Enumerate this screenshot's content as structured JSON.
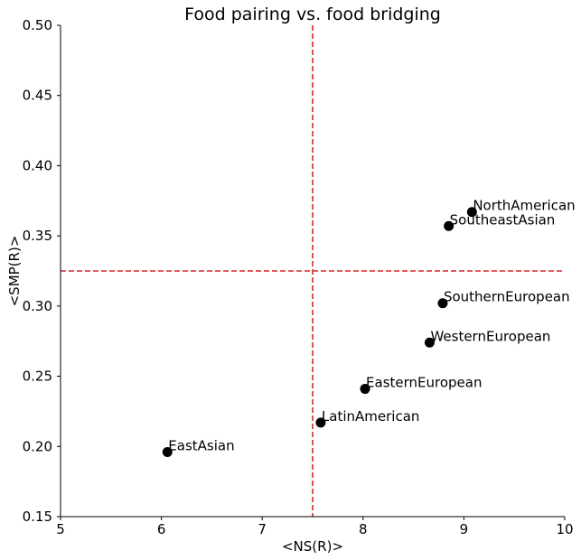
{
  "chart_data": {
    "type": "scatter",
    "title": "Food pairing vs. food bridging",
    "xlabel": "<NS(R)>",
    "ylabel": "<SMP(R)>",
    "xlim": [
      5,
      10
    ],
    "ylim": [
      0.15,
      0.5
    ],
    "xticks": [
      "5",
      "6",
      "7",
      "8",
      "9",
      "10"
    ],
    "yticks": [
      "0.15",
      "0.20",
      "0.25",
      "0.30",
      "0.35",
      "0.40",
      "0.45",
      "0.50"
    ],
    "grid": false,
    "points": [
      {
        "label": "NorthAmerican",
        "x": 9.08,
        "y": 0.367
      },
      {
        "label": "SoutheastAsian",
        "x": 8.85,
        "y": 0.357
      },
      {
        "label": "SouthernEuropean",
        "x": 8.79,
        "y": 0.302
      },
      {
        "label": "WesternEuropean",
        "x": 8.66,
        "y": 0.274
      },
      {
        "label": "EasternEuropean",
        "x": 8.02,
        "y": 0.241
      },
      {
        "label": "LatinAmerican",
        "x": 7.58,
        "y": 0.217
      },
      {
        "label": "EastAsian",
        "x": 6.06,
        "y": 0.196
      }
    ],
    "reference_lines": {
      "vertical_x": 7.5,
      "horizontal_y": 0.325
    },
    "colors": {
      "points": "#000000",
      "reference": "#d62728"
    }
  }
}
